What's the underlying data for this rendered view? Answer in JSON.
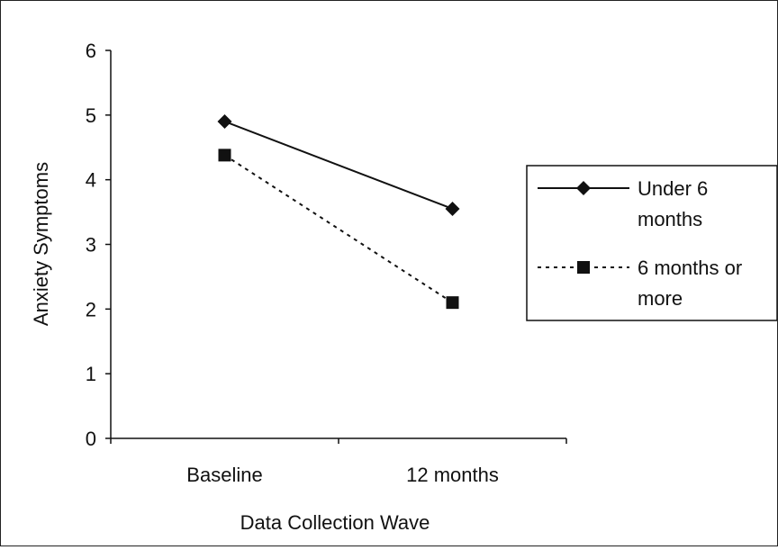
{
  "chart_data": {
    "type": "line",
    "title": "",
    "xlabel": "Data Collection Wave",
    "ylabel": "Anxiety Symptoms",
    "categories": [
      "Baseline",
      "12 months"
    ],
    "ylim": [
      0,
      6
    ],
    "yticks": [
      0,
      1,
      2,
      3,
      4,
      5,
      6
    ],
    "grid": false,
    "legend": "right",
    "series": [
      {
        "name_lines": [
          "Under 6",
          "months"
        ],
        "values": [
          4.9,
          3.55
        ],
        "line_style": "solid",
        "marker": "diamond",
        "color": "#111111"
      },
      {
        "name_lines": [
          "6 months or",
          "more"
        ],
        "values": [
          4.38,
          2.1
        ],
        "line_style": "dotted",
        "marker": "square",
        "color": "#111111"
      }
    ]
  }
}
